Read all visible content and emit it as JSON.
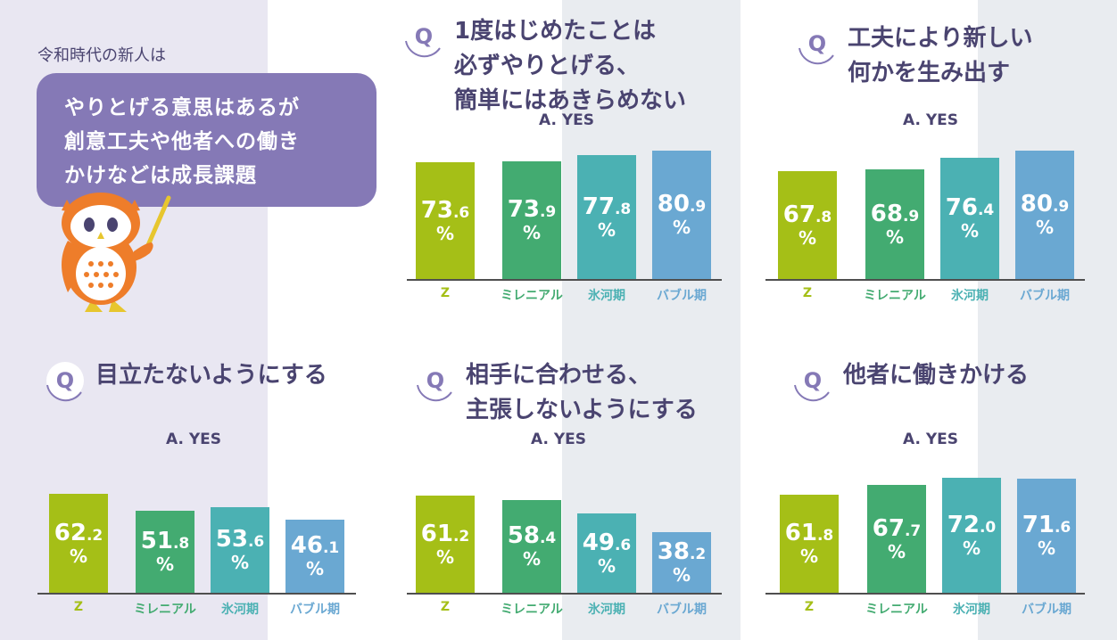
{
  "intro": {
    "caption": "令和時代の新人は",
    "bubble_lines": [
      "やりとげる意思はあるが",
      "創意工夫や他者への働き",
      "かけなどは成長課題"
    ]
  },
  "question_badge": "Q",
  "colors": {
    "Z": "#a5bf17",
    "ミレニアル": "#43ab71",
    "氷河期": "#4bb1b3",
    "バブル期": "#6aa8d2",
    "bubble": "#8579b6",
    "title": "#4a4470"
  },
  "chart_data": [
    {
      "type": "bar",
      "title": [
        "1度はじめたことは",
        "必ずやりとげる、",
        "簡単にはあきらめない"
      ],
      "answer_label": "A. YES",
      "categories": [
        "Z",
        "ミレニアル",
        "氷河期",
        "バブル期"
      ],
      "values": [
        73.6,
        73.9,
        77.8,
        80.9
      ],
      "unit": "%"
    },
    {
      "type": "bar",
      "title": [
        "工夫により新しい",
        "何かを生み出す"
      ],
      "answer_label": "A. YES",
      "categories": [
        "Z",
        "ミレニアル",
        "氷河期",
        "バブル期"
      ],
      "values": [
        67.8,
        68.9,
        76.4,
        80.9
      ],
      "unit": "%"
    },
    {
      "type": "bar",
      "title": [
        "目立たないようにする"
      ],
      "answer_label": "A. YES",
      "categories": [
        "Z",
        "ミレニアル",
        "氷河期",
        "バブル期"
      ],
      "values": [
        62.2,
        51.8,
        53.6,
        46.1
      ],
      "unit": "%"
    },
    {
      "type": "bar",
      "title": [
        "相手に合わせる、",
        "主張しないようにする"
      ],
      "answer_label": "A. YES",
      "categories": [
        "Z",
        "ミレニアル",
        "氷河期",
        "バブル期"
      ],
      "values": [
        61.2,
        58.4,
        49.6,
        38.2
      ],
      "unit": "%"
    },
    {
      "type": "bar",
      "title": [
        "他者に働きかける"
      ],
      "answer_label": "A. YES",
      "categories": [
        "Z",
        "ミレニアル",
        "氷河期",
        "バブル期"
      ],
      "values": [
        61.8,
        67.7,
        72.0,
        71.6
      ],
      "unit": "%"
    }
  ]
}
